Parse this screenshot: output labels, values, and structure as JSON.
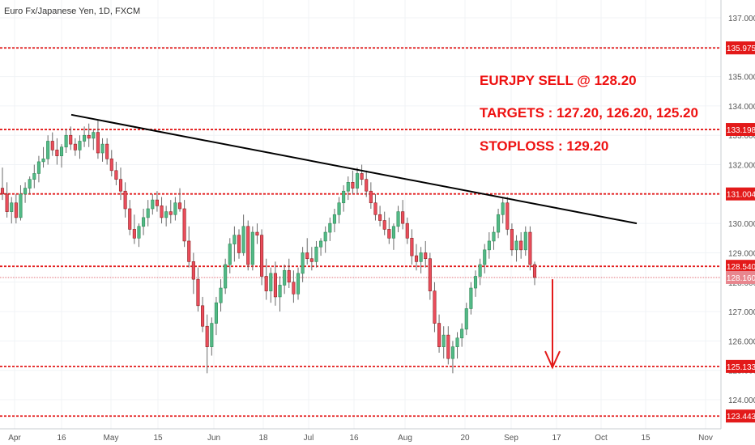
{
  "chart_data": {
    "type": "candlestick",
    "title": "Euro Fx/Japanese Yen, 1D, FXCM",
    "ylim": [
      123.3,
      137.5
    ],
    "y_ticks": [
      "124.000",
      "125.000",
      "126.000",
      "127.000",
      "128.000",
      "129.000",
      "130.000",
      "131.000",
      "132.000",
      "133.000",
      "134.000",
      "135.000",
      "136.000",
      "137.000"
    ],
    "x_ticks": [
      "Apr",
      "16",
      "May",
      "15",
      "Jun",
      "18",
      "Jul",
      "16",
      "Aug",
      "20",
      "Sep",
      "17",
      "Oct",
      "15",
      "Nov"
    ],
    "levels": [
      {
        "label": "135.975",
        "value": 135.975,
        "kind": "resistance"
      },
      {
        "label": "133.198",
        "value": 133.198,
        "kind": "resistance"
      },
      {
        "label": "131.004",
        "value": 131.004,
        "kind": "resistance"
      },
      {
        "label": "128.540",
        "value": 128.54,
        "kind": "support"
      },
      {
        "label": "128.160",
        "value": 128.16,
        "kind": "last_price"
      },
      {
        "label": "125.133",
        "value": 125.133,
        "kind": "support"
      },
      {
        "label": "123.443",
        "value": 123.443,
        "kind": "support"
      }
    ],
    "trendline": {
      "start": [
        0.0,
        133.7
      ],
      "end": [
        0.9,
        130.0
      ]
    },
    "arrow": {
      "from": 128.1,
      "to": 125.1
    },
    "candles": [
      [
        131.2,
        131.9,
        130.8,
        131.0
      ],
      [
        131.0,
        131.4,
        130.2,
        130.4
      ],
      [
        130.4,
        130.9,
        130.0,
        130.7
      ],
      [
        130.7,
        131.0,
        130.0,
        130.2
      ],
      [
        130.2,
        131.3,
        130.1,
        131.0
      ],
      [
        131.0,
        131.4,
        130.7,
        131.2
      ],
      [
        131.2,
        131.6,
        131.0,
        131.5
      ],
      [
        131.5,
        132.0,
        131.2,
        131.7
      ],
      [
        131.7,
        132.3,
        131.4,
        132.1
      ],
      [
        132.1,
        132.6,
        131.9,
        132.2
      ],
      [
        132.2,
        133.0,
        132.0,
        132.8
      ],
      [
        132.8,
        133.1,
        132.3,
        132.5
      ],
      [
        132.5,
        132.9,
        132.0,
        132.3
      ],
      [
        132.3,
        132.7,
        131.9,
        132.6
      ],
      [
        132.6,
        133.2,
        132.4,
        133.0
      ],
      [
        133.0,
        133.3,
        132.5,
        132.7
      ],
      [
        132.7,
        132.9,
        132.3,
        132.5
      ],
      [
        132.5,
        133.0,
        132.2,
        132.8
      ],
      [
        132.8,
        133.3,
        132.6,
        133.0
      ],
      [
        133.0,
        133.4,
        132.6,
        132.9
      ],
      [
        132.9,
        133.2,
        132.5,
        133.1
      ],
      [
        133.1,
        133.5,
        132.2,
        132.4
      ],
      [
        132.4,
        132.9,
        132.1,
        132.7
      ],
      [
        132.7,
        132.9,
        132.0,
        132.2
      ],
      [
        132.2,
        132.5,
        131.6,
        131.8
      ],
      [
        131.8,
        132.1,
        131.3,
        131.5
      ],
      [
        131.5,
        131.9,
        130.8,
        131.1
      ],
      [
        131.1,
        131.4,
        130.2,
        130.5
      ],
      [
        130.5,
        130.8,
        129.6,
        129.8
      ],
      [
        129.8,
        130.3,
        129.3,
        129.5
      ],
      [
        129.5,
        130.0,
        129.2,
        129.9
      ],
      [
        129.9,
        130.5,
        129.6,
        130.2
      ],
      [
        130.2,
        130.8,
        129.9,
        130.5
      ],
      [
        130.5,
        131.0,
        130.3,
        130.8
      ],
      [
        130.8,
        131.1,
        130.4,
        130.6
      ],
      [
        130.6,
        130.9,
        130.0,
        130.2
      ],
      [
        130.2,
        130.6,
        129.9,
        130.4
      ],
      [
        130.4,
        130.8,
        130.0,
        130.3
      ],
      [
        130.3,
        130.9,
        130.1,
        130.7
      ],
      [
        130.7,
        131.2,
        130.4,
        130.5
      ],
      [
        130.5,
        130.8,
        129.2,
        129.4
      ],
      [
        129.4,
        129.9,
        128.5,
        128.7
      ],
      [
        128.7,
        129.0,
        127.6,
        128.1
      ],
      [
        128.1,
        128.5,
        127.0,
        127.2
      ],
      [
        127.2,
        127.5,
        126.3,
        126.5
      ],
      [
        126.5,
        126.9,
        124.9,
        125.8
      ],
      [
        125.8,
        126.8,
        125.5,
        126.6
      ],
      [
        126.6,
        127.5,
        126.2,
        127.3
      ],
      [
        127.3,
        128.1,
        127.0,
        127.8
      ],
      [
        127.8,
        128.8,
        127.6,
        128.6
      ],
      [
        128.6,
        129.5,
        128.3,
        129.3
      ],
      [
        129.3,
        129.9,
        128.7,
        129.6
      ],
      [
        129.6,
        129.8,
        128.8,
        129.0
      ],
      [
        129.0,
        130.3,
        128.9,
        129.9
      ],
      [
        129.9,
        130.1,
        128.4,
        128.6
      ],
      [
        128.6,
        129.9,
        128.4,
        129.7
      ],
      [
        129.7,
        130.0,
        129.3,
        129.6
      ],
      [
        129.6,
        129.8,
        127.9,
        128.2
      ],
      [
        128.2,
        128.8,
        127.4,
        127.7
      ],
      [
        127.7,
        128.5,
        127.3,
        128.3
      ],
      [
        128.3,
        128.7,
        127.2,
        127.5
      ],
      [
        127.5,
        128.2,
        127.0,
        127.9
      ],
      [
        127.9,
        128.6,
        127.6,
        128.4
      ],
      [
        128.4,
        128.8,
        127.8,
        128.0
      ],
      [
        128.0,
        128.4,
        127.3,
        127.6
      ],
      [
        127.6,
        128.5,
        127.4,
        128.3
      ],
      [
        128.3,
        129.2,
        128.0,
        129.0
      ],
      [
        129.0,
        129.5,
        128.6,
        128.8
      ],
      [
        128.8,
        129.2,
        128.4,
        128.7
      ],
      [
        128.7,
        129.4,
        128.5,
        129.2
      ],
      [
        129.2,
        129.5,
        128.9,
        129.4
      ],
      [
        129.4,
        129.9,
        129.0,
        129.7
      ],
      [
        129.7,
        130.2,
        129.4,
        130.0
      ],
      [
        130.0,
        130.5,
        129.7,
        130.3
      ],
      [
        130.3,
        130.9,
        130.0,
        130.7
      ],
      [
        130.7,
        131.3,
        130.4,
        131.1
      ],
      [
        131.1,
        131.6,
        130.8,
        131.4
      ],
      [
        131.4,
        131.8,
        131.0,
        131.2
      ],
      [
        131.2,
        131.9,
        131.0,
        131.7
      ],
      [
        131.7,
        132.0,
        131.3,
        131.5
      ],
      [
        131.5,
        131.8,
        130.9,
        131.1
      ],
      [
        131.1,
        131.4,
        130.5,
        130.7
      ],
      [
        130.7,
        131.0,
        130.1,
        130.3
      ],
      [
        130.3,
        130.6,
        129.9,
        130.1
      ],
      [
        130.1,
        130.4,
        129.6,
        129.8
      ],
      [
        129.8,
        130.2,
        129.3,
        129.5
      ],
      [
        129.5,
        130.0,
        129.1,
        129.9
      ],
      [
        129.9,
        130.6,
        129.7,
        130.4
      ],
      [
        130.4,
        130.8,
        129.8,
        130.0
      ],
      [
        130.0,
        130.2,
        129.3,
        129.5
      ],
      [
        129.5,
        129.8,
        128.6,
        128.9
      ],
      [
        128.9,
        129.3,
        128.4,
        128.7
      ],
      [
        128.7,
        129.2,
        128.3,
        129.0
      ],
      [
        129.0,
        129.4,
        128.5,
        128.8
      ],
      [
        128.8,
        129.0,
        127.4,
        127.7
      ],
      [
        127.7,
        128.0,
        126.3,
        126.6
      ],
      [
        126.6,
        126.9,
        125.6,
        125.8
      ],
      [
        125.8,
        126.5,
        125.4,
        126.2
      ],
      [
        126.2,
        126.5,
        125.2,
        125.4
      ],
      [
        125.4,
        126.0,
        124.9,
        125.8
      ],
      [
        125.8,
        126.3,
        125.4,
        126.1
      ],
      [
        126.1,
        126.6,
        125.8,
        126.4
      ],
      [
        126.4,
        127.3,
        126.2,
        127.1
      ],
      [
        127.1,
        128.0,
        126.9,
        127.8
      ],
      [
        127.8,
        128.4,
        127.5,
        128.2
      ],
      [
        128.2,
        128.8,
        127.9,
        128.6
      ],
      [
        128.6,
        129.3,
        128.3,
        129.1
      ],
      [
        129.1,
        129.7,
        128.8,
        129.4
      ],
      [
        129.4,
        129.9,
        129.1,
        129.7
      ],
      [
        129.7,
        130.5,
        129.5,
        130.3
      ],
      [
        130.3,
        130.9,
        130.0,
        130.7
      ],
      [
        130.7,
        130.9,
        129.6,
        129.8
      ],
      [
        129.8,
        130.0,
        128.9,
        129.1
      ],
      [
        129.1,
        129.6,
        128.7,
        129.4
      ],
      [
        129.4,
        129.7,
        128.8,
        129.1
      ],
      [
        129.1,
        129.9,
        128.9,
        129.7
      ],
      [
        129.7,
        129.9,
        128.4,
        128.6
      ],
      [
        128.6,
        128.7,
        127.9,
        128.16
      ]
    ],
    "annotations": [
      "EURJPY SELL @ 128.20",
      "TARGETS : 127.20, 126.20, 125.20",
      "STOPLOSS : 129.20"
    ]
  }
}
